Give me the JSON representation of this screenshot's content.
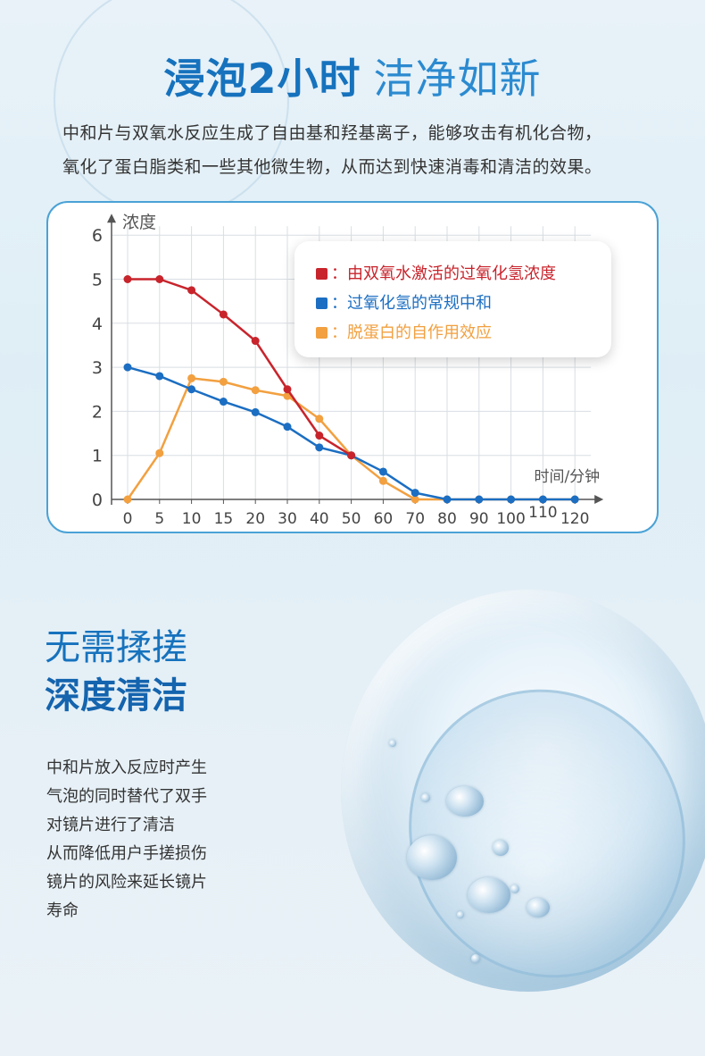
{
  "hero": {
    "title_bold": "浸泡2小时",
    "title_light": "洁净如新"
  },
  "intro": {
    "line1": "中和片与双氧水反应生成了自由基和羟基离子，能够攻击有机化合物，",
    "line2": "氧化了蛋白脂类和一些其他微生物，从而达到快速消毒和清洁的效果。"
  },
  "chart_data": {
    "type": "line",
    "ylabel": "浓度",
    "xlabel": "时间/分钟",
    "categories": [
      "0",
      "5",
      "10",
      "15",
      "20",
      "30",
      "40",
      "50",
      "60",
      "70",
      "80",
      "90",
      "100",
      "110",
      "120"
    ],
    "ylim": [
      0,
      6
    ],
    "yticks": [
      0,
      1,
      2,
      3,
      4,
      5,
      6
    ],
    "grid": true,
    "legend_position": "top-right",
    "series": [
      {
        "name": "由双氧水激活的过氧化氢浓度",
        "label": "：由双氧水激活的过氧化氢浓度",
        "color": "#c8242c",
        "points": [
          [
            0,
            5.0
          ],
          [
            1,
            5.0
          ],
          [
            2,
            4.75
          ],
          [
            3,
            4.2
          ],
          [
            4,
            3.6
          ],
          [
            5,
            2.5
          ],
          [
            6,
            1.45
          ],
          [
            7,
            1.0
          ]
        ]
      },
      {
        "name": "过氧化氢的常规中和",
        "label": "：过氧化氢的常规中和",
        "color": "#1b6ec2",
        "points": [
          [
            0,
            3.0
          ],
          [
            1,
            2.8
          ],
          [
            2,
            2.5
          ],
          [
            3,
            2.22
          ],
          [
            4,
            1.98
          ],
          [
            5,
            1.65
          ],
          [
            6,
            1.18
          ],
          [
            7,
            1.0
          ],
          [
            8,
            0.63
          ],
          [
            9,
            0.15
          ],
          [
            10,
            0
          ],
          [
            11,
            0
          ],
          [
            12,
            0
          ],
          [
            13,
            0
          ],
          [
            14,
            0
          ]
        ]
      },
      {
        "name": "脱蛋白的自作用效应",
        "label": "：脱蛋白的自作用效应",
        "color": "#f2a040",
        "points": [
          [
            0,
            0
          ],
          [
            1,
            1.05
          ],
          [
            2,
            2.75
          ],
          [
            3,
            2.67
          ],
          [
            4,
            2.48
          ],
          [
            5,
            2.35
          ],
          [
            6,
            1.83
          ],
          [
            7,
            1.0
          ],
          [
            8,
            0.42
          ],
          [
            9,
            0
          ],
          [
            10,
            0
          ],
          [
            11,
            0
          ],
          [
            12,
            0
          ],
          [
            13,
            0
          ],
          [
            14,
            0
          ]
        ]
      }
    ]
  },
  "section": {
    "title_line1": "无需揉搓",
    "title_line2": "深度清洁"
  },
  "body": {
    "lines": [
      "中和片放入反应时产生",
      "气泡的同时替代了双手",
      "对镜片进行了清洁",
      "从而降低用户手搓损伤",
      "镜片的风险来延长镜片",
      "寿命"
    ]
  }
}
